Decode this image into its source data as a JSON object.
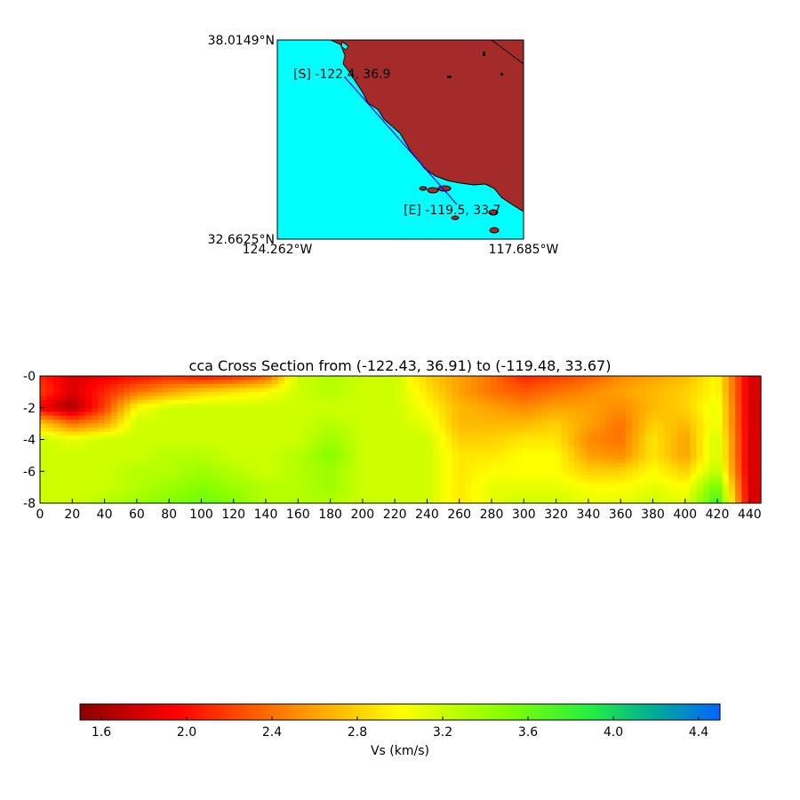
{
  "map": {
    "lat_top_label": "38.0149°N",
    "lat_bottom_label": "32.6625°N",
    "lon_left_label": "124.262°W",
    "lon_right_label": "117.685°W",
    "start_label": "[S] -122.4, 36.9",
    "end_label": "[E] -119.5, 33.7",
    "colors": {
      "ocean": "#00ffff",
      "land": "#a52a2a",
      "profile_line": "#0000ff"
    }
  },
  "chart_data": {
    "type": "heatmap",
    "title": "cca Cross Section from (-122.43, 36.91) to (-119.48, 33.67)",
    "xlabel": "",
    "ylabel": "",
    "xlim": [
      0,
      447
    ],
    "ylim": [
      -8,
      0
    ],
    "x_ticks": [
      "0",
      "20",
      "40",
      "60",
      "80",
      "100",
      "120",
      "140",
      "160",
      "180",
      "200",
      "220",
      "240",
      "260",
      "280",
      "300",
      "320",
      "340",
      "360",
      "380",
      "400",
      "420",
      "440"
    ],
    "y_ticks": [
      "-0",
      "-2",
      "-4",
      "-6",
      "-8"
    ],
    "x_sample": [
      0,
      20,
      40,
      60,
      80,
      100,
      120,
      140,
      160,
      180,
      200,
      220,
      240,
      260,
      280,
      300,
      320,
      340,
      360,
      380,
      400,
      420,
      440
    ],
    "depth_sample": [
      0,
      1,
      2,
      3,
      4,
      5,
      6,
      7,
      8
    ],
    "vs_grid": [
      [
        2.1,
        1.8,
        1.9,
        2.0,
        2.1,
        2.0,
        2.1,
        2.3,
        3.2,
        3.3,
        3.2,
        3.2,
        2.8,
        2.6,
        2.4,
        2.1,
        2.2,
        2.3,
        2.5,
        2.6,
        2.7,
        3.0,
        1.8
      ],
      [
        2.2,
        1.8,
        2.1,
        2.4,
        2.6,
        2.8,
        2.9,
        3.0,
        3.2,
        3.3,
        3.2,
        3.2,
        2.9,
        2.6,
        2.4,
        2.3,
        2.4,
        2.5,
        2.6,
        2.7,
        2.8,
        3.0,
        1.8
      ],
      [
        1.9,
        1.6,
        2.2,
        3.0,
        3.2,
        3.2,
        3.2,
        3.2,
        3.2,
        3.2,
        3.2,
        3.2,
        3.0,
        2.7,
        2.6,
        2.5,
        2.6,
        2.6,
        2.5,
        2.7,
        2.8,
        3.1,
        1.8
      ],
      [
        2.8,
        2.4,
        2.6,
        3.2,
        3.2,
        3.2,
        3.2,
        3.2,
        3.2,
        3.3,
        3.2,
        3.2,
        3.1,
        2.7,
        2.7,
        2.7,
        2.8,
        2.6,
        2.4,
        2.8,
        2.7,
        3.1,
        1.8
      ],
      [
        3.2,
        3.1,
        3.2,
        3.2,
        3.2,
        3.2,
        3.2,
        3.2,
        3.2,
        3.4,
        3.2,
        3.2,
        3.2,
        2.8,
        2.8,
        2.9,
        2.9,
        2.5,
        2.4,
        2.9,
        2.6,
        3.2,
        1.8
      ],
      [
        3.2,
        3.2,
        3.2,
        3.2,
        3.3,
        3.3,
        3.2,
        3.2,
        3.3,
        3.5,
        3.2,
        3.2,
        3.2,
        2.9,
        2.9,
        3.0,
        3.0,
        2.6,
        2.5,
        2.9,
        2.6,
        3.2,
        1.8
      ],
      [
        3.2,
        3.2,
        3.2,
        3.3,
        3.3,
        3.4,
        3.3,
        3.2,
        3.3,
        3.4,
        3.2,
        3.2,
        3.2,
        2.9,
        3.0,
        3.0,
        3.0,
        2.8,
        2.8,
        3.0,
        2.8,
        3.3,
        1.8
      ],
      [
        3.2,
        3.2,
        3.2,
        3.3,
        3.4,
        3.5,
        3.4,
        3.3,
        3.3,
        3.4,
        3.2,
        3.2,
        3.2,
        2.9,
        3.1,
        3.1,
        3.1,
        3.0,
        3.0,
        3.1,
        3.0,
        3.6,
        1.8
      ],
      [
        3.2,
        3.2,
        3.3,
        3.4,
        3.5,
        3.6,
        3.5,
        3.3,
        3.3,
        3.3,
        3.2,
        3.2,
        3.2,
        2.9,
        3.1,
        3.2,
        3.2,
        3.1,
        3.1,
        3.2,
        3.1,
        3.8,
        1.8
      ]
    ]
  },
  "colorbar": {
    "label": "Vs (km/s)",
    "min": 1.5,
    "max": 4.5,
    "ticks": [
      "1.6",
      "2.0",
      "2.4",
      "2.8",
      "3.2",
      "3.6",
      "4.0",
      "4.4"
    ],
    "tick_values": [
      1.6,
      2.0,
      2.4,
      2.8,
      3.2,
      3.6,
      4.0,
      4.4
    ]
  }
}
